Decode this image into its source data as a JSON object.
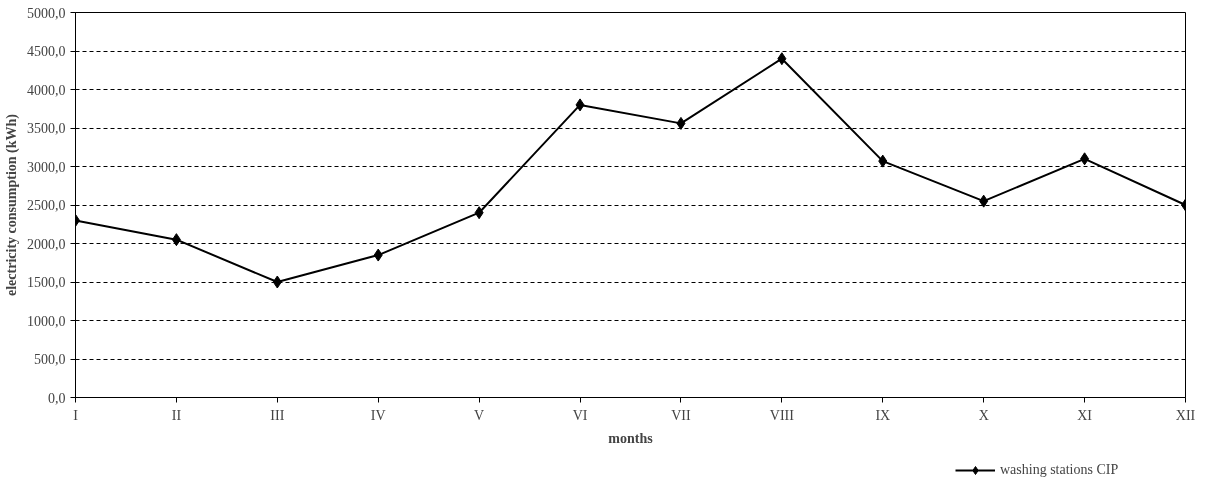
{
  "chart_data": {
    "type": "line",
    "xlabel": "months",
    "ylabel": "electricity consumption (kWh)",
    "categories": [
      "I",
      "II",
      "III",
      "IV",
      "V",
      "VI",
      "VII",
      "VIII",
      "IX",
      "X",
      "XI",
      "XII"
    ],
    "series": [
      {
        "name": "washing stations CIP",
        "color": "#000000",
        "values": [
          2300,
          2050,
          1500,
          1850,
          2400,
          3800,
          3560,
          4400,
          3070,
          2550,
          3100,
          2500
        ]
      }
    ],
    "ylim": [
      0,
      5000
    ],
    "yticks": [
      {
        "value": 0,
        "label": "0,0"
      },
      {
        "value": 500,
        "label": "500,0"
      },
      {
        "value": 1000,
        "label": "1000,0"
      },
      {
        "value": 1500,
        "label": "1500,0"
      },
      {
        "value": 2000,
        "label": "2000,0"
      },
      {
        "value": 2500,
        "label": "2500,0"
      },
      {
        "value": 3000,
        "label": "3000,0"
      },
      {
        "value": 3500,
        "label": "3500,0"
      },
      {
        "value": 4000,
        "label": "4000,0"
      },
      {
        "value": 4500,
        "label": "4500,0"
      },
      {
        "value": 5000,
        "label": "5000,0"
      }
    ],
    "grid": "y",
    "legend": "bottom right",
    "marker": "diamond",
    "line_style": "solid"
  }
}
